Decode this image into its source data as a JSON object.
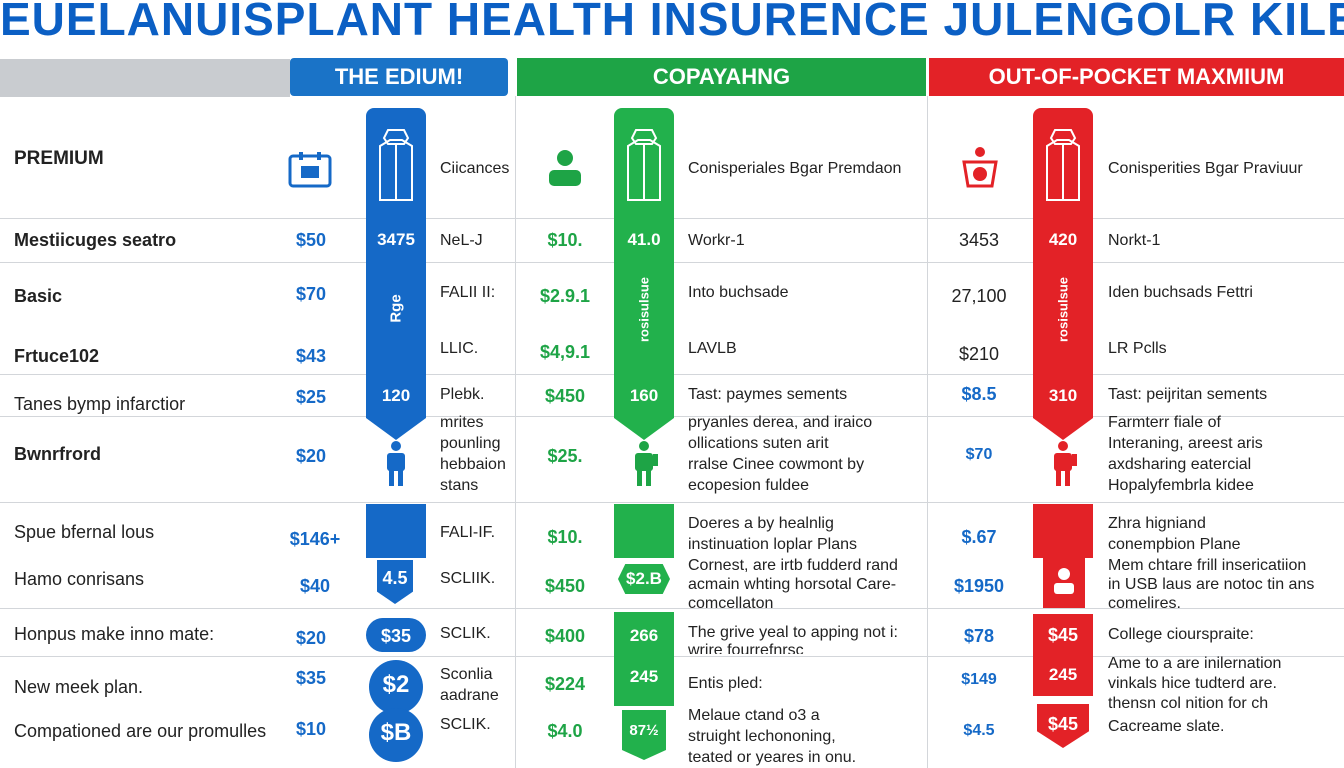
{
  "title": "EUELANUISPLANT HEALTH INSURENCE JULENGOLR KILES",
  "headers": [
    "THE EDIUM!",
    "COPAYAHNG",
    "OUT-OF-POCKET MAXMIUM"
  ],
  "colors": {
    "blue": "#1569c7",
    "green": "#22b14c",
    "red": "#e32227",
    "title": "#0b5fc4"
  },
  "premium_label": "PREMIUM",
  "col_top_text": {
    "c1": "Ciicances",
    "c2": "Conisperiales Bgar Premdaon",
    "c3": "Conisperities Bgar Praviuur"
  },
  "icons": {
    "c1": "calendar-icon",
    "c2": "person-icon",
    "c3": "scale-icon"
  },
  "rows_labels": [
    "Mestiicuges seatro",
    "Basic",
    "Frtuce102",
    "Tanes bymp infarctior",
    "Bwnrfrord",
    "Spue bfernal lous",
    "Hamo conrisans",
    "Honpus make inno mate:",
    "New meek plan.",
    "Compationed are our promulles"
  ],
  "c1_values": [
    "$50",
    "$70",
    "$43",
    "$25",
    "$20",
    "$146+",
    "$40",
    "$20",
    "$35",
    "$10"
  ],
  "c1_col_values": [
    "3475",
    "Rge",
    "120",
    "4.5",
    "$35",
    "$2",
    "$B"
  ],
  "c1_text": [
    "NeL-J",
    "FALII II:",
    "LLIC.",
    "Plebk.",
    "mrites\npounling\nhebbaion\nstans",
    "FALI-IF.",
    "SCLIIK.",
    "SCLIK.",
    "Sconlia\naadrane",
    "SCLIK."
  ],
  "c2_values": [
    "$10.",
    "$2.9.1",
    "$4,9.1",
    "$450",
    "$25.",
    "$10.",
    "$450",
    "$400",
    "$224",
    "$4.0"
  ],
  "c2_col_values": [
    "41.0",
    "rosisulsue",
    "160",
    "$2.B",
    "266",
    "245",
    "87½"
  ],
  "c2_text": [
    "Workr-1",
    "Into buchsade",
    "LAVLB",
    "Tast: paymes sements",
    "pryanles derea, and iraico\nollications suten arit\nrralse Cinee cowmont by\necopesion fuldee",
    "Doeres a by healnlig\ninstinuation loplar Plans",
    "Cornest, are irtb fudderd rand\nacmain whting horsotal Care-\ncomcellaton",
    "The grive yeal to apping not i:\nwrire fourrefnrsc",
    "Entis pled:",
    "Melaue ctand o3 a\nstruight lechononing,\nteated or yeares in onu."
  ],
  "c3_values": [
    "3453",
    "27,100",
    "$210",
    "$8.5",
    "$70",
    "$.67",
    "$1950",
    "$78",
    "$149",
    "$4.5"
  ],
  "c3_col_values": [
    "420",
    "rosisulsue",
    "310",
    "$45",
    "245",
    "$45"
  ],
  "c3_text": [
    "Norkt-1",
    "Iden buchsads Fettri",
    "LR Pclls",
    "Tast: peijritan sements",
    "Farmterr fiale of\nInteraning, areest aris\naxdsharing eatercial\nHopalyfembrla kidee",
    "Zhra higniand\nconempbion Plane",
    "Mem chtare frill insericatiion\nin USB laus are notoc tin ans\ncomelires.",
    "College ciourspraite:",
    "Ame to a are inilernation\nvinkals hice tudterd are.\nthensn col nition for ch",
    "Cacreame slate."
  ]
}
